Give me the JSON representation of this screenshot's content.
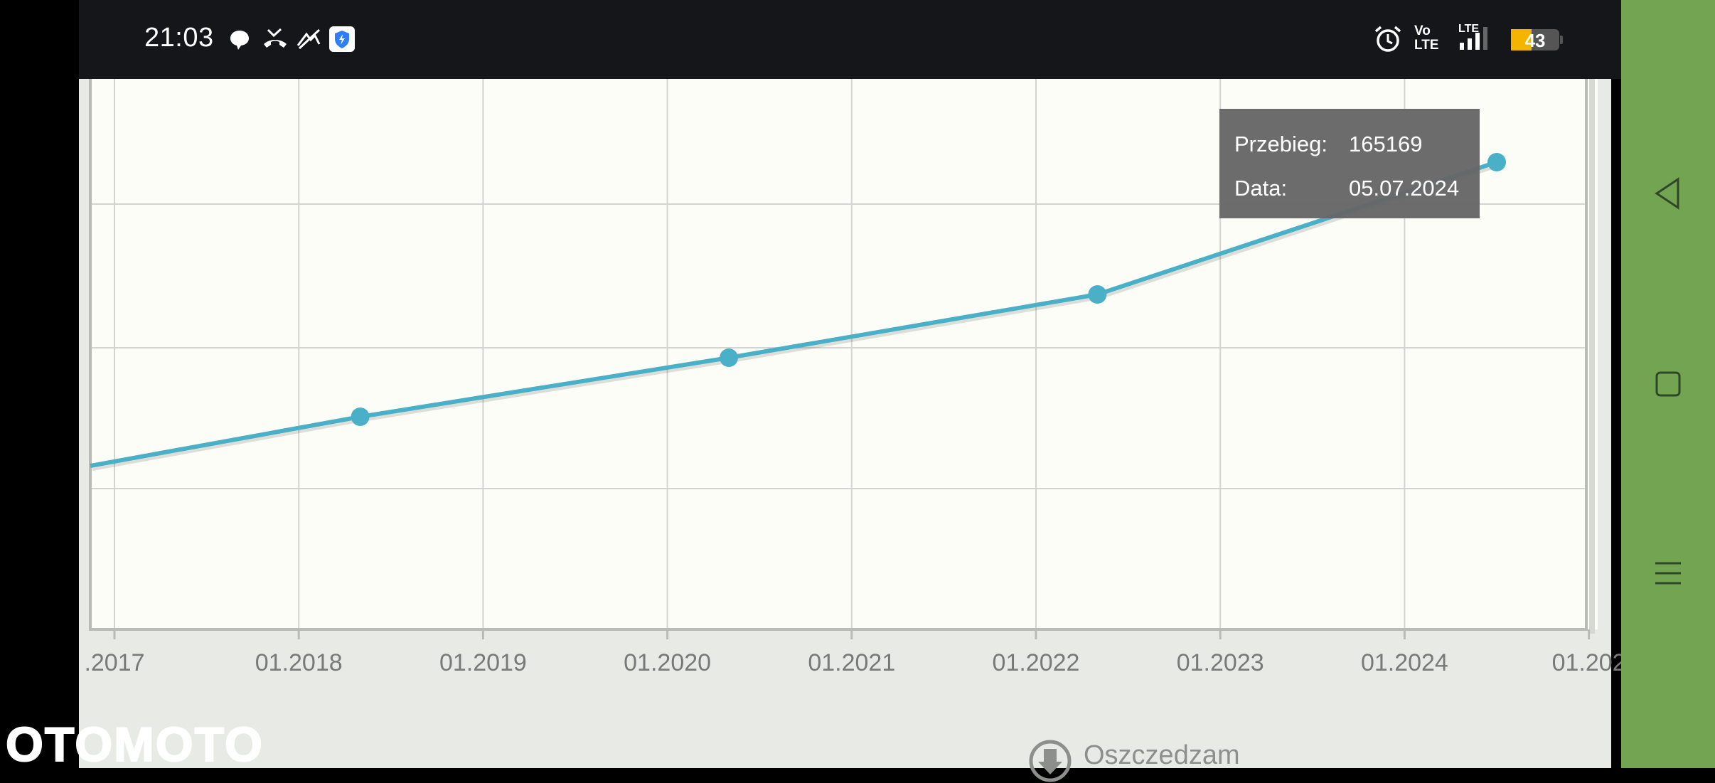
{
  "status_bar": {
    "time": "21:03",
    "notification_icons": [
      "chat-bubble-icon",
      "missed-call-icon",
      "signal-no-icon",
      "shield-app-icon"
    ],
    "system_icons": [
      "alarm-icon",
      "volte-icon",
      "lte-signal-icon"
    ],
    "volte_top": "Vo",
    "volte_bottom": "LTE",
    "lte_label": "LTE",
    "battery": "43",
    "battery_color": "#f5b400"
  },
  "chart_data": {
    "type": "line",
    "x_tick_labels": [
      ".2017",
      "01.2018",
      "01.2019",
      "01.2020",
      "01.2021",
      "01.2022",
      "01.2023",
      "01.2024",
      "01.202"
    ],
    "series": [
      {
        "color": "#4ab0c8",
        "points": [
          {
            "x": "05.2018"
          },
          {
            "x": "05.2020"
          },
          {
            "x": "05.2022"
          },
          {
            "x": "07.2024",
            "y": 165169
          }
        ]
      }
    ],
    "grid": true
  },
  "tooltip": {
    "mileage_label": "Przebieg:",
    "mileage_value": "165169",
    "date_label": "Data:",
    "date_value": "05.07.2024"
  },
  "save_link": {
    "label": "Oszczedzam",
    "icon": "download-circle-icon"
  },
  "watermark": "OTOMOTO",
  "nav": {
    "back_icon": "back-triangle-icon",
    "home_icon": "home-square-icon",
    "menu_icon": "menu-lines-icon"
  }
}
